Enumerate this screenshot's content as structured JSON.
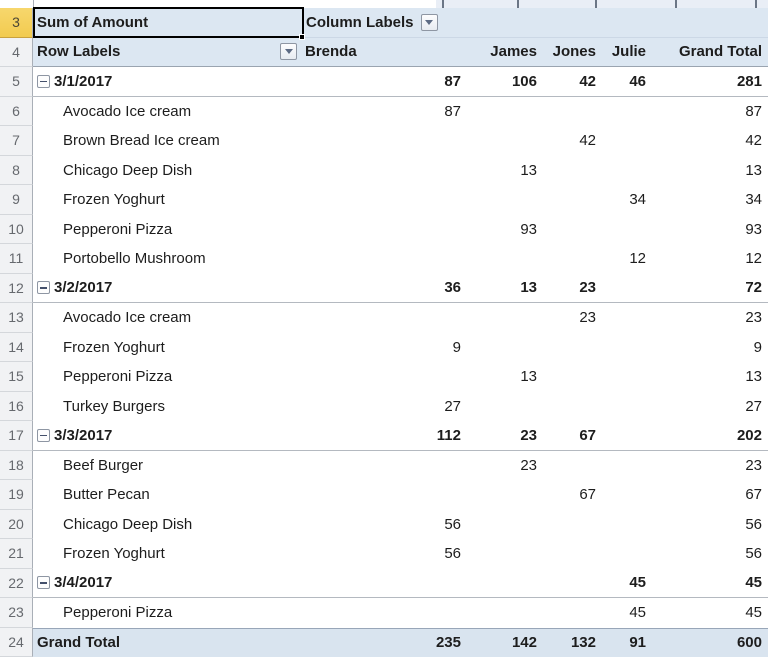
{
  "pivot": {
    "measure_label": "Sum of Amount",
    "column_labels_label": "Column Labels",
    "row_labels_label": "Row Labels",
    "columns": [
      "Brenda",
      "James",
      "Jones",
      "Julie",
      "Grand Total"
    ],
    "rows": [
      {
        "n": 3,
        "type": "measure",
        "label": "Sum of Amount"
      },
      {
        "n": 4,
        "type": "colhead",
        "label": "Row Labels",
        "values": [
          "Brenda",
          "James",
          "Jones",
          "Julie",
          "Grand Total"
        ]
      },
      {
        "n": 5,
        "type": "group",
        "label": "3/1/2017",
        "values": [
          "87",
          "106",
          "42",
          "46",
          "281"
        ]
      },
      {
        "n": 6,
        "type": "item",
        "label": "Avocado Ice cream",
        "values": [
          "87",
          "",
          "",
          "",
          "87"
        ]
      },
      {
        "n": 7,
        "type": "item",
        "label": "Brown Bread Ice cream",
        "values": [
          "",
          "",
          "42",
          "",
          "42"
        ]
      },
      {
        "n": 8,
        "type": "item",
        "label": "Chicago Deep Dish",
        "values": [
          "",
          "13",
          "",
          "",
          "13"
        ]
      },
      {
        "n": 9,
        "type": "item",
        "label": "Frozen Yoghurt",
        "values": [
          "",
          "",
          "",
          "34",
          "34"
        ]
      },
      {
        "n": 10,
        "type": "item",
        "label": "Pepperoni Pizza",
        "values": [
          "",
          "93",
          "",
          "",
          "93"
        ]
      },
      {
        "n": 11,
        "type": "item",
        "label": "Portobello Mushroom",
        "values": [
          "",
          "",
          "",
          "12",
          "12"
        ]
      },
      {
        "n": 12,
        "type": "group",
        "label": "3/2/2017",
        "values": [
          "36",
          "13",
          "23",
          "",
          "72"
        ]
      },
      {
        "n": 13,
        "type": "item",
        "label": "Avocado Ice cream",
        "values": [
          "",
          "",
          "23",
          "",
          "23"
        ]
      },
      {
        "n": 14,
        "type": "item",
        "label": "Frozen Yoghurt",
        "values": [
          "9",
          "",
          "",
          "",
          "9"
        ]
      },
      {
        "n": 15,
        "type": "item",
        "label": "Pepperoni Pizza",
        "values": [
          "",
          "13",
          "",
          "",
          "13"
        ]
      },
      {
        "n": 16,
        "type": "item",
        "label": "Turkey Burgers",
        "values": [
          "27",
          "",
          "",
          "",
          "27"
        ]
      },
      {
        "n": 17,
        "type": "group",
        "label": "3/3/2017",
        "values": [
          "112",
          "23",
          "67",
          "",
          "202"
        ]
      },
      {
        "n": 18,
        "type": "item",
        "label": "Beef Burger",
        "values": [
          "",
          "23",
          "",
          "",
          "23"
        ]
      },
      {
        "n": 19,
        "type": "item",
        "label": "Butter Pecan",
        "values": [
          "",
          "",
          "67",
          "",
          "67"
        ]
      },
      {
        "n": 20,
        "type": "item",
        "label": "Chicago Deep Dish",
        "values": [
          "56",
          "",
          "",
          "",
          "56"
        ]
      },
      {
        "n": 21,
        "type": "item",
        "label": "Frozen Yoghurt",
        "values": [
          "56",
          "",
          "",
          "",
          "56"
        ]
      },
      {
        "n": 22,
        "type": "group",
        "label": "3/4/2017",
        "values": [
          "",
          "",
          "",
          "45",
          "45"
        ]
      },
      {
        "n": 23,
        "type": "item",
        "label": "Pepperoni Pizza",
        "values": [
          "",
          "",
          "",
          "45",
          "45"
        ]
      },
      {
        "n": 24,
        "type": "total",
        "label": "Grand Total",
        "values": [
          "235",
          "142",
          "132",
          "91",
          "600"
        ]
      }
    ]
  },
  "colors": {
    "header-fill": "#dce7f2",
    "total-fill": "#d9e4ef",
    "rn-active-fill": "#f2cb50",
    "selection": "#000000"
  }
}
